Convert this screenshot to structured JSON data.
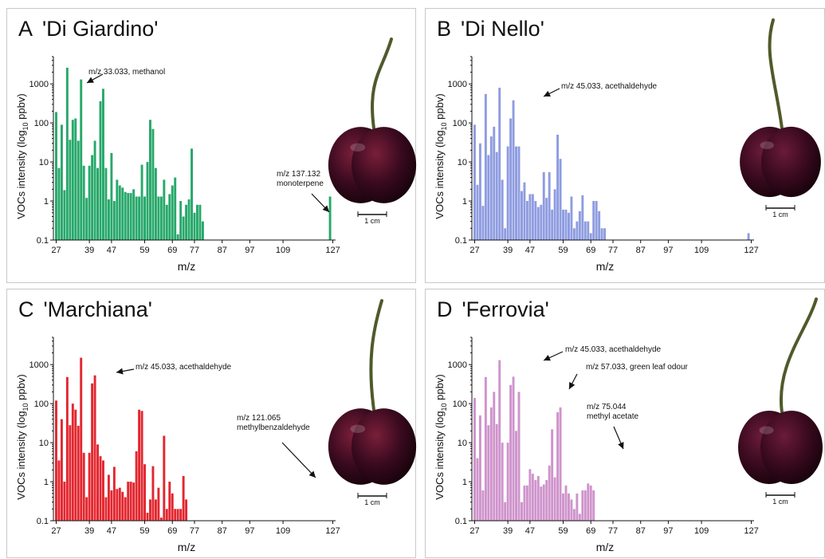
{
  "panels": [
    {
      "letter": "A",
      "cultivar": "'Di Giardino'",
      "color": "#27a86a",
      "scale_label": "1 cm",
      "annotations": [
        {
          "text": [
            "m/z 33.033, methanol"
          ]
        },
        {
          "text": [
            "m/z 137.132",
            "monoterpene"
          ]
        }
      ]
    },
    {
      "letter": "B",
      "cultivar": "'Di Nello'",
      "color": "#8e9ce0",
      "scale_label": "1 cm",
      "annotations": [
        {
          "text": [
            "m/z 45.033, acethaldehyde"
          ]
        }
      ]
    },
    {
      "letter": "C",
      "cultivar": "'Marchiana'",
      "color": "#e3262f",
      "scale_label": "1 cm",
      "annotations": [
        {
          "text": [
            "m/z 45.033, acethaldehyde"
          ]
        },
        {
          "text": [
            "m/z 121.065",
            "methylbenzaldehyde"
          ]
        }
      ]
    },
    {
      "letter": "D",
      "cultivar": "'Ferrovia'",
      "color": "#cf93cc",
      "scale_label": "1 cm",
      "annotations": [
        {
          "text": [
            "m/z 45.033, acethaldehyde"
          ]
        },
        {
          "text": [
            "m/z 57.033,  green leaf odour"
          ]
        },
        {
          "text": [
            "m/z 75.044",
            "methyl acetate"
          ]
        }
      ]
    }
  ],
  "chart_data": [
    {
      "type": "bar",
      "title": "A  'Di Giardino'",
      "xlabel": "m/z",
      "ylabel": "VOCs intensity (log10 ppbv)",
      "yscale": "log",
      "ylim": [
        0.1,
        5000
      ],
      "xlim": [
        26,
        128
      ],
      "xticks": [
        27,
        39,
        47,
        59,
        69,
        77,
        87,
        97,
        109,
        127
      ],
      "yticks": [
        0.1,
        1,
        10,
        100,
        1000
      ],
      "x": [
        27,
        28,
        29,
        30,
        31,
        32,
        33,
        34,
        35,
        36,
        37,
        38,
        39,
        40,
        41,
        42,
        43,
        44,
        45,
        46,
        47,
        48,
        49,
        50,
        51,
        52,
        53,
        54,
        55,
        56,
        57,
        58,
        59,
        60,
        61,
        62,
        63,
        64,
        65,
        66,
        67,
        68,
        69,
        70,
        71,
        72,
        73,
        74,
        75,
        76,
        77,
        78,
        79,
        80,
        81,
        82,
        83,
        84,
        85,
        86,
        87,
        88,
        89,
        90,
        91,
        92,
        93,
        94,
        95,
        96,
        97,
        98,
        99,
        100,
        101,
        102,
        103,
        104,
        105,
        106,
        107,
        108,
        109,
        110,
        111,
        112,
        113,
        114,
        115,
        116,
        117,
        118,
        119,
        120,
        121,
        122,
        123,
        124,
        125,
        126,
        127
      ],
      "values": [
        190,
        7,
        90,
        1.9,
        2600,
        37,
        120,
        130,
        35,
        1300,
        8,
        1.2,
        8,
        15,
        35,
        7,
        360,
        750,
        7,
        1.1,
        17,
        1,
        3.5,
        2.5,
        2.2,
        1.7,
        1.6,
        1.6,
        2,
        1.3,
        1.3,
        8.5,
        1.3,
        10,
        120,
        70,
        7,
        1.3,
        1.3,
        3.5,
        0.8,
        1.5,
        2.5,
        4,
        0.14,
        1,
        0.4,
        0.8,
        1.1,
        22,
        0.5,
        0.8,
        0.8,
        0.3,
        0.1,
        0.1,
        0.1,
        0.1,
        0.1,
        0.1,
        0.1,
        0.1,
        0.1,
        0.1,
        0.1,
        0.1,
        0.1,
        0.1,
        0.1,
        0.1,
        0.1,
        0.1,
        0.1,
        0.1,
        0.1,
        0.1,
        0.1,
        0.1,
        0.1,
        0.1,
        0.1,
        0.1,
        0.1,
        0.1,
        0.1,
        0.1,
        0.1,
        0.1,
        0.1,
        0.1,
        0.1,
        0.1,
        0.1,
        0.1,
        0.1,
        0.1,
        0.1,
        0.1,
        0.1,
        1.3,
        0.1
      ]
    },
    {
      "type": "bar",
      "title": "B  'Di Nello'",
      "xlabel": "m/z",
      "ylabel": "VOCs intensity (log10 ppbv)",
      "yscale": "log",
      "ylim": [
        0.1,
        5000
      ],
      "xlim": [
        26,
        128
      ],
      "xticks": [
        27,
        39,
        47,
        59,
        69,
        77,
        87,
        97,
        109,
        127
      ],
      "yticks": [
        0.1,
        1,
        10,
        100,
        1000
      ],
      "x": [
        27,
        28,
        29,
        30,
        31,
        32,
        33,
        34,
        35,
        36,
        37,
        38,
        39,
        40,
        41,
        42,
        43,
        44,
        45,
        46,
        47,
        48,
        49,
        50,
        51,
        52,
        53,
        54,
        55,
        56,
        57,
        58,
        59,
        60,
        61,
        62,
        63,
        64,
        65,
        66,
        67,
        68,
        69,
        70,
        71,
        72,
        73,
        74,
        75,
        76,
        77,
        78,
        79,
        80,
        81,
        82,
        83,
        84,
        85,
        86,
        87,
        88,
        89,
        90,
        91,
        92,
        93,
        94,
        95,
        96,
        97,
        98,
        99,
        100,
        101,
        102,
        103,
        104,
        105,
        106,
        107,
        108,
        109,
        110,
        111,
        112,
        113,
        114,
        115,
        116,
        117,
        118,
        119,
        120,
        121,
        122,
        123,
        124,
        125,
        126,
        127
      ],
      "values": [
        90,
        2.6,
        30,
        0.75,
        550,
        15,
        45,
        80,
        18,
        800,
        3.5,
        0.2,
        25,
        130,
        380,
        25,
        25,
        1.8,
        3,
        1,
        1.5,
        1.5,
        1,
        0.7,
        0.8,
        5.5,
        1.2,
        5.5,
        0.6,
        2,
        50,
        12,
        0.6,
        0.6,
        0.5,
        1.3,
        0.2,
        0.3,
        0.55,
        1.4,
        0.3,
        0.3,
        0.15,
        1,
        1,
        0.55,
        0.2,
        0.2,
        0.1,
        0.1,
        0.1,
        0.1,
        0.1,
        0.1,
        0.1,
        0.1,
        0.1,
        0.1,
        0.1,
        0.1,
        0.1,
        0.1,
        0.1,
        0.1,
        0.1,
        0.1,
        0.1,
        0.1,
        0.1,
        0.1,
        0.1,
        0.1,
        0.1,
        0.1,
        0.1,
        0.1,
        0.1,
        0.1,
        0.1,
        0.1,
        0.1,
        0.1,
        0.1,
        0.1,
        0.1,
        0.1,
        0.1,
        0.1,
        0.1,
        0.1,
        0.1,
        0.1,
        0.1,
        0.1,
        0.1,
        0.1,
        0.1,
        0.1,
        0.1,
        0.15,
        0.1
      ]
    },
    {
      "type": "bar",
      "title": "C  'Marchiana'",
      "xlabel": "m/z",
      "ylabel": "VOCs intensity (log10 ppbv)",
      "yscale": "log",
      "ylim": [
        0.1,
        5000
      ],
      "xlim": [
        26,
        128
      ],
      "xticks": [
        27,
        39,
        47,
        59,
        69,
        77,
        87,
        97,
        109,
        127
      ],
      "yticks": [
        0.1,
        1,
        10,
        100,
        1000
      ],
      "x": [
        27,
        28,
        29,
        30,
        31,
        32,
        33,
        34,
        35,
        36,
        37,
        38,
        39,
        40,
        41,
        42,
        43,
        44,
        45,
        46,
        47,
        48,
        49,
        50,
        51,
        52,
        53,
        54,
        55,
        56,
        57,
        58,
        59,
        60,
        61,
        62,
        63,
        64,
        65,
        66,
        67,
        68,
        69,
        70,
        71,
        72,
        73,
        74,
        75,
        76,
        77,
        78,
        79,
        80,
        81,
        82,
        83,
        84,
        85,
        86,
        87,
        88,
        89,
        90,
        91,
        92,
        93,
        94,
        95,
        96,
        97,
        98,
        99,
        100,
        101,
        102,
        103,
        104,
        105,
        106,
        107,
        108,
        109,
        110,
        111,
        112,
        113,
        114,
        115,
        116,
        117,
        118,
        119,
        120,
        121,
        122,
        123,
        124,
        125,
        126,
        127
      ],
      "values": [
        120,
        3.5,
        40,
        1,
        480,
        28,
        100,
        70,
        27,
        1500,
        5.5,
        0.4,
        5.5,
        330,
        530,
        9,
        4.5,
        3.5,
        0.4,
        1.5,
        0.6,
        2.4,
        0.65,
        0.7,
        0.55,
        0.4,
        1,
        1,
        0.95,
        6,
        70,
        65,
        2.8,
        0.16,
        0.35,
        2.5,
        0.35,
        0.7,
        0.12,
        15,
        0.2,
        1,
        0.5,
        0.2,
        0.2,
        0.2,
        1.4,
        0.35,
        0.1,
        0.1,
        0.1,
        0.1,
        0.1,
        0.1,
        0.1,
        0.1,
        0.1,
        0.1,
        0.1,
        0.1,
        0.1,
        0.1,
        0.1,
        0.1,
        0.1,
        0.1,
        0.1,
        0.1,
        0.1,
        0.1,
        0.1,
        0.1,
        0.1,
        0.1,
        0.1,
        0.1,
        0.1,
        0.1,
        0.1,
        0.1,
        0.1,
        0.1,
        0.1,
        0.1,
        0.1,
        0.1,
        0.1,
        0.1,
        0.1,
        0.1,
        0.1,
        0.1,
        0.1,
        0.1,
        0.1,
        0.1,
        0.1,
        0.1,
        0.1,
        0.1,
        0.1
      ]
    },
    {
      "type": "bar",
      "title": "D  'Ferrovia'",
      "xlabel": "m/z",
      "ylabel": "VOCs intensity (log10 ppbv)",
      "yscale": "log",
      "ylim": [
        0.1,
        5000
      ],
      "xlim": [
        26,
        128
      ],
      "xticks": [
        27,
        39,
        47,
        59,
        69,
        77,
        87,
        97,
        109,
        127
      ],
      "yticks": [
        0.1,
        1,
        10,
        100,
        1000
      ],
      "x": [
        27,
        28,
        29,
        30,
        31,
        32,
        33,
        34,
        35,
        36,
        37,
        38,
        39,
        40,
        41,
        42,
        43,
        44,
        45,
        46,
        47,
        48,
        49,
        50,
        51,
        52,
        53,
        54,
        55,
        56,
        57,
        58,
        59,
        60,
        61,
        62,
        63,
        64,
        65,
        66,
        67,
        68,
        69,
        70,
        71,
        72,
        73,
        74,
        75,
        76,
        77,
        78,
        79,
        80,
        81,
        82,
        83,
        84,
        85,
        86,
        87,
        88,
        89,
        90,
        91,
        92,
        93,
        94,
        95,
        96,
        97,
        98,
        99,
        100,
        101,
        102,
        103,
        104,
        105,
        106,
        107,
        108,
        109,
        110,
        111,
        112,
        113,
        114,
        115,
        116,
        117,
        118,
        119,
        120,
        121,
        122,
        123,
        124,
        125,
        126,
        127
      ],
      "values": [
        140,
        4,
        50,
        0.6,
        480,
        28,
        80,
        200,
        30,
        1300,
        10,
        0.3,
        10,
        300,
        490,
        20,
        200,
        0.3,
        0.8,
        0.8,
        2.1,
        1.6,
        1.1,
        1.4,
        0.75,
        0.85,
        1.1,
        2.6,
        22,
        1.3,
        60,
        80,
        0.5,
        0.8,
        0.5,
        0.35,
        0.2,
        0.5,
        0.15,
        0.6,
        0.6,
        0.9,
        0.8,
        0.6,
        0.1,
        0.1,
        0.1,
        0.1,
        0.1,
        0.1,
        0.1,
        0.1,
        0.1,
        0.1,
        0.1,
        0.1,
        0.1,
        0.1,
        0.1,
        0.1,
        0.1,
        0.1,
        0.1,
        0.1,
        0.1,
        0.1,
        0.1,
        0.1,
        0.1,
        0.1,
        0.1,
        0.1,
        0.1,
        0.1,
        0.1,
        0.1,
        0.1,
        0.1,
        0.1,
        0.1,
        0.1,
        0.1,
        0.1,
        0.1,
        0.1,
        0.1,
        0.1,
        0.1,
        0.1,
        0.1,
        0.1,
        0.1,
        0.1,
        0.1,
        0.1,
        0.1,
        0.1,
        0.1,
        0.1,
        0.1,
        0.1
      ]
    }
  ]
}
